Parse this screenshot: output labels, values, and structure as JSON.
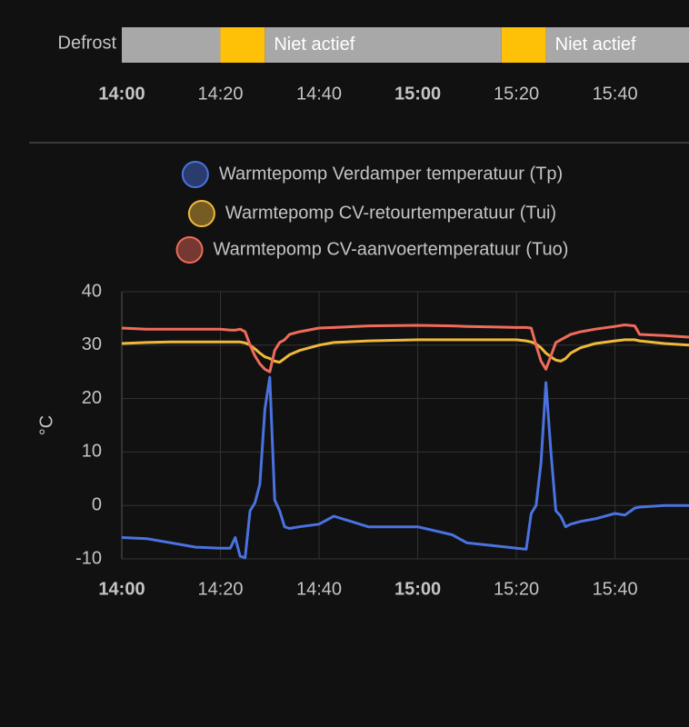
{
  "chart_data": [
    {
      "type": "timeline",
      "label": "Defrost",
      "xlim": [
        "14:00",
        "15:55"
      ],
      "xticks": [
        "14:00",
        "14:20",
        "14:40",
        "15:00",
        "15:20",
        "15:40"
      ],
      "segments": [
        {
          "start": "14:00",
          "end": "14:20",
          "state": null,
          "color": "#a8a8a8"
        },
        {
          "start": "14:20",
          "end": "14:29",
          "state": null,
          "color": "#ffc107"
        },
        {
          "start": "14:29",
          "end": "15:17",
          "state": "Niet actief",
          "color": "#a8a8a8"
        },
        {
          "start": "15:17",
          "end": "15:26",
          "state": null,
          "color": "#ffc107"
        },
        {
          "start": "15:26",
          "end": "15:55",
          "state": "Niet actief",
          "color": "#a8a8a8"
        }
      ]
    },
    {
      "type": "line",
      "y_label": "°C",
      "xlim": [
        "14:00",
        "15:55"
      ],
      "ylim": [
        -10,
        40
      ],
      "xticks": [
        "14:00",
        "14:20",
        "14:40",
        "15:00",
        "15:20",
        "15:40"
      ],
      "yticks": [
        -10,
        0,
        10,
        20,
        30,
        40
      ],
      "grid": true,
      "x": [
        "14:00",
        "14:05",
        "14:10",
        "14:15",
        "14:20",
        "14:22",
        "14:23",
        "14:24",
        "14:25",
        "14:26",
        "14:27",
        "14:28",
        "14:29",
        "14:30",
        "14:31",
        "14:32",
        "14:33",
        "14:34",
        "14:36",
        "14:40",
        "14:43",
        "14:50",
        "15:00",
        "15:07",
        "15:10",
        "15:15",
        "15:20",
        "15:22",
        "15:23",
        "15:24",
        "15:25",
        "15:26",
        "15:27",
        "15:28",
        "15:29",
        "15:30",
        "15:31",
        "15:33",
        "15:36",
        "15:40",
        "15:42",
        "15:44",
        "15:45",
        "15:50",
        "15:55"
      ],
      "series": [
        {
          "name": "Warmtepomp Verdamper temperatuur (Tp)",
          "color": "#4a72e0",
          "values": [
            -6,
            -6.2,
            -7,
            -7.8,
            -8,
            -8,
            -6,
            -9.5,
            -9.8,
            -1,
            0.5,
            4,
            18,
            24,
            1,
            -1,
            -4,
            -4.3,
            -4,
            -3.5,
            -2,
            -4,
            -4,
            -5.5,
            -7,
            -7.5,
            -8,
            -8.2,
            -1.5,
            0,
            8,
            23,
            10,
            -1,
            -2,
            -4,
            -3.5,
            -3,
            -2.5,
            -1.5,
            -1.8,
            -0.5,
            -0.3,
            0,
            0
          ]
        },
        {
          "name": "Warmtepomp CV-retourtemperatuur (Tui)",
          "color": "#f0b93a",
          "values": [
            30.3,
            30.5,
            30.6,
            30.6,
            30.6,
            30.6,
            30.6,
            30.6,
            30.4,
            30,
            29.3,
            28.5,
            27.8,
            27.5,
            27,
            26.8,
            27.5,
            28.2,
            29,
            30,
            30.5,
            30.8,
            31,
            31,
            31,
            31,
            31,
            30.8,
            30.6,
            30.2,
            29.5,
            28.5,
            27.8,
            27.2,
            27,
            27.5,
            28.5,
            29.5,
            30.3,
            30.8,
            31,
            31,
            30.8,
            30.3,
            30
          ]
        },
        {
          "name": "Warmtepomp CV-aanvoertemperatuur (Tuo)",
          "color": "#ef6b5a",
          "values": [
            33.2,
            33,
            33,
            33,
            33,
            32.8,
            32.8,
            33,
            32.5,
            30,
            28,
            26.5,
            25.5,
            25,
            29,
            30.5,
            31,
            32,
            32.5,
            33.2,
            33.3,
            33.6,
            33.7,
            33.6,
            33.5,
            33.4,
            33.3,
            33.3,
            33.2,
            30,
            27,
            25.5,
            28,
            30.5,
            31,
            31.5,
            32,
            32.5,
            33,
            33.5,
            33.8,
            33.6,
            32,
            31.8,
            31.5
          ]
        }
      ]
    }
  ]
}
